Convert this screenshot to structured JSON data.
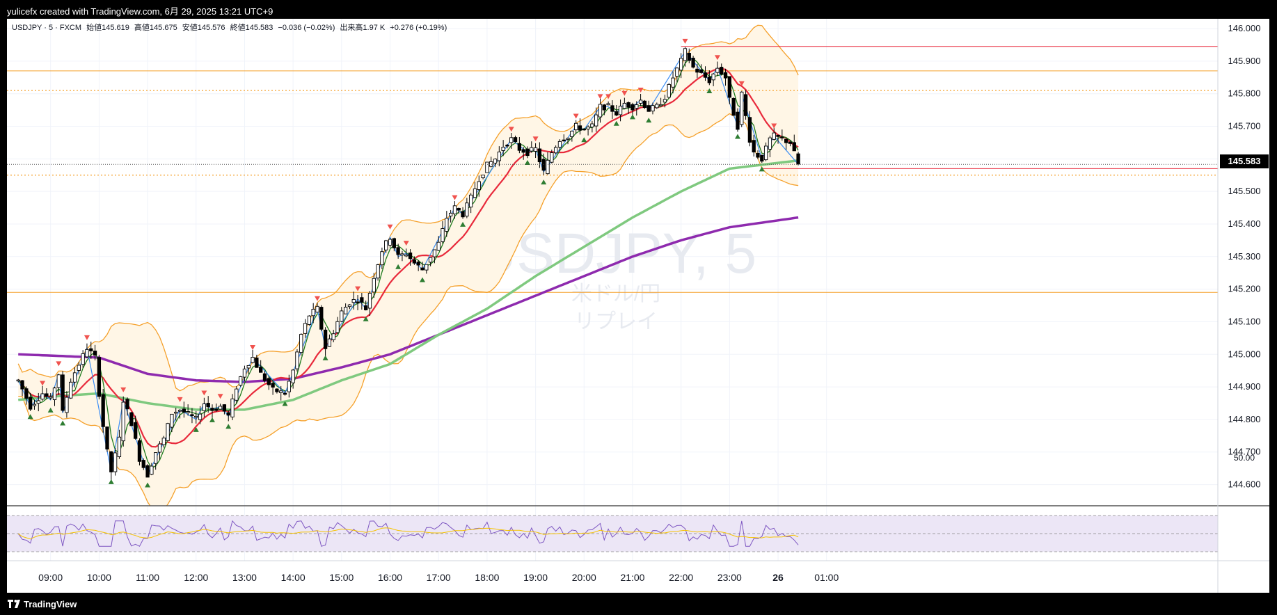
{
  "header": {
    "attribution": "yulicefx created with TradingView.com, 6月 29, 2025 13:21 UTC+9"
  },
  "legend": {
    "symbol": "USDJPY · 5 · FXCM",
    "open_label": "始値",
    "open": "145.619",
    "high_label": "高値",
    "high": "145.675",
    "low_label": "安値",
    "low": "145.576",
    "close_label": "終値",
    "close": "145.583",
    "change": "−0.036 (−0.02%)",
    "volume_label": "出来高",
    "volume": "1.97 K",
    "volume_change": "+0.276 (+0.19%)"
  },
  "watermark": {
    "symbol": "USDJPY, 5",
    "line2": "米ドル/円",
    "line3": "リプレイ"
  },
  "last_price": "145.583",
  "rsi_level": "50.00",
  "footer": {
    "brand": "TradingView"
  },
  "colors": {
    "up_candle": "#ffffff",
    "down_candle": "#000000",
    "sma_short": "#1e7b1e",
    "ma_mid": "#e8293b",
    "ma_long": "#7fc97f",
    "ma_200": "#8e2aae",
    "bollinger": "#f5a02a",
    "bollinger_fill": "#fff6e6",
    "zigzag": "#3c8ef5",
    "resistance_line": "#f5a02a",
    "peak_marker": "#f0534f",
    "trough_marker": "#2e7d32",
    "rsi_line": "#7e57c2",
    "rsi_ma": "#f5c200",
    "rsi_band": "#ece6f6"
  },
  "icons": [
    "tradingview-logo-icon",
    "peak-marker-icon",
    "trough-marker-icon"
  ],
  "chart_data": {
    "type": "candlestick",
    "title": "USDJPY · 5 · FXCM",
    "x_ticks": [
      "09:00",
      "10:00",
      "11:00",
      "12:00",
      "13:00",
      "14:00",
      "15:00",
      "16:00",
      "17:00",
      "18:00",
      "19:00",
      "20:00",
      "21:00",
      "22:00",
      "23:00",
      "26",
      "01:00"
    ],
    "y_ticks": [
      "146.000",
      "145.900",
      "145.800",
      "145.700",
      "145.600",
      "145.500",
      "145.400",
      "145.300",
      "145.200",
      "145.100",
      "145.000",
      "144.900",
      "144.800",
      "144.700",
      "144.600"
    ],
    "ylim": [
      144.535,
      146.03
    ],
    "horizontal_levels": [
      {
        "price": 145.87,
        "style": "solid",
        "color": "#f5a02a"
      },
      {
        "price": 145.81,
        "style": "dotted",
        "color": "#f5a02a"
      },
      {
        "price": 145.55,
        "style": "dotted",
        "color": "#f5a02a"
      },
      {
        "price": 145.19,
        "style": "solid",
        "color": "#f5a02a"
      },
      {
        "price": 145.945,
        "style": "solid",
        "color": "#e8293b",
        "from": "22:00"
      },
      {
        "price": 145.57,
        "style": "solid",
        "color": "#e8293b",
        "from": "23:40"
      }
    ],
    "close_anchors": [
      {
        "t": "08:20",
        "v": 144.92
      },
      {
        "t": "08:35",
        "v": 144.84
      },
      {
        "t": "08:50",
        "v": 144.88
      },
      {
        "t": "09:00",
        "v": 144.86
      },
      {
        "t": "09:10",
        "v": 144.94
      },
      {
        "t": "09:15",
        "v": 144.82
      },
      {
        "t": "09:25",
        "v": 144.92
      },
      {
        "t": "09:35",
        "v": 144.97
      },
      {
        "t": "09:45",
        "v": 145.02
      },
      {
        "t": "09:55",
        "v": 144.99
      },
      {
        "t": "10:00",
        "v": 144.88
      },
      {
        "t": "10:05",
        "v": 144.78
      },
      {
        "t": "10:10",
        "v": 144.7
      },
      {
        "t": "10:15",
        "v": 144.64
      },
      {
        "t": "10:25",
        "v": 144.74
      },
      {
        "t": "10:30",
        "v": 144.86
      },
      {
        "t": "10:40",
        "v": 144.79
      },
      {
        "t": "10:50",
        "v": 144.68
      },
      {
        "t": "11:00",
        "v": 144.63
      },
      {
        "t": "11:10",
        "v": 144.7
      },
      {
        "t": "11:20",
        "v": 144.74
      },
      {
        "t": "11:30",
        "v": 144.82
      },
      {
        "t": "11:40",
        "v": 144.83
      },
      {
        "t": "12:00",
        "v": 144.8
      },
      {
        "t": "12:10",
        "v": 144.85
      },
      {
        "t": "12:20",
        "v": 144.83
      },
      {
        "t": "12:30",
        "v": 144.84
      },
      {
        "t": "12:40",
        "v": 144.81
      },
      {
        "t": "12:50",
        "v": 144.9
      },
      {
        "t": "13:00",
        "v": 144.96
      },
      {
        "t": "13:10",
        "v": 144.99
      },
      {
        "t": "13:20",
        "v": 144.94
      },
      {
        "t": "13:35",
        "v": 144.89
      },
      {
        "t": "13:50",
        "v": 144.88
      },
      {
        "t": "14:00",
        "v": 144.95
      },
      {
        "t": "14:10",
        "v": 145.06
      },
      {
        "t": "14:20",
        "v": 145.12
      },
      {
        "t": "14:30",
        "v": 145.14
      },
      {
        "t": "14:40",
        "v": 145.02
      },
      {
        "t": "14:50",
        "v": 145.07
      },
      {
        "t": "15:00",
        "v": 145.13
      },
      {
        "t": "15:10",
        "v": 145.16
      },
      {
        "t": "15:20",
        "v": 145.17
      },
      {
        "t": "15:30",
        "v": 145.14
      },
      {
        "t": "15:40",
        "v": 145.24
      },
      {
        "t": "15:50",
        "v": 145.32
      },
      {
        "t": "16:00",
        "v": 145.36
      },
      {
        "t": "16:10",
        "v": 145.3
      },
      {
        "t": "16:20",
        "v": 145.31
      },
      {
        "t": "16:30",
        "v": 145.28
      },
      {
        "t": "16:40",
        "v": 145.26
      },
      {
        "t": "16:50",
        "v": 145.3
      },
      {
        "t": "17:00",
        "v": 145.34
      },
      {
        "t": "17:10",
        "v": 145.42
      },
      {
        "t": "17:20",
        "v": 145.45
      },
      {
        "t": "17:30",
        "v": 145.43
      },
      {
        "t": "17:40",
        "v": 145.48
      },
      {
        "t": "17:50",
        "v": 145.54
      },
      {
        "t": "18:00",
        "v": 145.58
      },
      {
        "t": "18:10",
        "v": 145.6
      },
      {
        "t": "18:20",
        "v": 145.64
      },
      {
        "t": "18:30",
        "v": 145.66
      },
      {
        "t": "18:40",
        "v": 145.63
      },
      {
        "t": "18:50",
        "v": 145.62
      },
      {
        "t": "19:00",
        "v": 145.63
      },
      {
        "t": "19:10",
        "v": 145.56
      },
      {
        "t": "19:20",
        "v": 145.62
      },
      {
        "t": "19:30",
        "v": 145.66
      },
      {
        "t": "19:40",
        "v": 145.67
      },
      {
        "t": "19:50",
        "v": 145.7
      },
      {
        "t": "20:00",
        "v": 145.69
      },
      {
        "t": "20:10",
        "v": 145.7
      },
      {
        "t": "20:20",
        "v": 145.76
      },
      {
        "t": "20:30",
        "v": 145.76
      },
      {
        "t": "20:40",
        "v": 145.74
      },
      {
        "t": "20:50",
        "v": 145.77
      },
      {
        "t": "21:00",
        "v": 145.76
      },
      {
        "t": "21:10",
        "v": 145.78
      },
      {
        "t": "21:20",
        "v": 145.75
      },
      {
        "t": "21:30",
        "v": 145.76
      },
      {
        "t": "21:40",
        "v": 145.79
      },
      {
        "t": "21:50",
        "v": 145.85
      },
      {
        "t": "22:00",
        "v": 145.9
      },
      {
        "t": "22:05",
        "v": 145.93
      },
      {
        "t": "22:15",
        "v": 145.88
      },
      {
        "t": "22:25",
        "v": 145.86
      },
      {
        "t": "22:35",
        "v": 145.84
      },
      {
        "t": "22:45",
        "v": 145.88
      },
      {
        "t": "22:55",
        "v": 145.85
      },
      {
        "t": "23:00",
        "v": 145.78
      },
      {
        "t": "23:10",
        "v": 145.7
      },
      {
        "t": "23:15",
        "v": 145.8
      },
      {
        "t": "23:25",
        "v": 145.66
      },
      {
        "t": "23:30",
        "v": 145.62
      },
      {
        "t": "23:40",
        "v": 145.6
      },
      {
        "t": "23:50",
        "v": 145.66
      },
      {
        "t": "23:55",
        "v": 145.67
      },
      {
        "t": "00:05",
        "v": 145.66
      },
      {
        "t": "00:15",
        "v": 145.65
      },
      {
        "t": "00:25",
        "v": 145.583
      }
    ],
    "indicators": {
      "ma_200_anchors": [
        {
          "t": "08:20",
          "v": 145.0
        },
        {
          "t": "10:00",
          "v": 144.99
        },
        {
          "t": "11:00",
          "v": 144.94
        },
        {
          "t": "12:00",
          "v": 144.92
        },
        {
          "t": "13:00",
          "v": 144.915
        },
        {
          "t": "14:00",
          "v": 144.925
        },
        {
          "t": "15:00",
          "v": 144.96
        },
        {
          "t": "16:00",
          "v": 145.0
        },
        {
          "t": "17:00",
          "v": 145.06
        },
        {
          "t": "18:00",
          "v": 145.12
        },
        {
          "t": "19:00",
          "v": 145.18
        },
        {
          "t": "20:00",
          "v": 145.24
        },
        {
          "t": "21:00",
          "v": 145.3
        },
        {
          "t": "22:00",
          "v": 145.35
        },
        {
          "t": "23:00",
          "v": 145.39
        },
        {
          "t": "00:25",
          "v": 145.42
        }
      ],
      "ma_long_anchors": [
        {
          "t": "08:20",
          "v": 144.86
        },
        {
          "t": "09:00",
          "v": 144.87
        },
        {
          "t": "10:00",
          "v": 144.88
        },
        {
          "t": "11:00",
          "v": 144.85
        },
        {
          "t": "12:00",
          "v": 144.83
        },
        {
          "t": "13:00",
          "v": 144.83
        },
        {
          "t": "14:00",
          "v": 144.86
        },
        {
          "t": "15:00",
          "v": 144.92
        },
        {
          "t": "16:00",
          "v": 144.97
        },
        {
          "t": "17:00",
          "v": 145.06
        },
        {
          "t": "18:00",
          "v": 145.14
        },
        {
          "t": "19:00",
          "v": 145.24
        },
        {
          "t": "20:00",
          "v": 145.33
        },
        {
          "t": "21:00",
          "v": 145.42
        },
        {
          "t": "22:00",
          "v": 145.5
        },
        {
          "t": "23:00",
          "v": 145.57
        },
        {
          "t": "00:25",
          "v": 145.595
        }
      ],
      "rsi_level": 50
    }
  }
}
